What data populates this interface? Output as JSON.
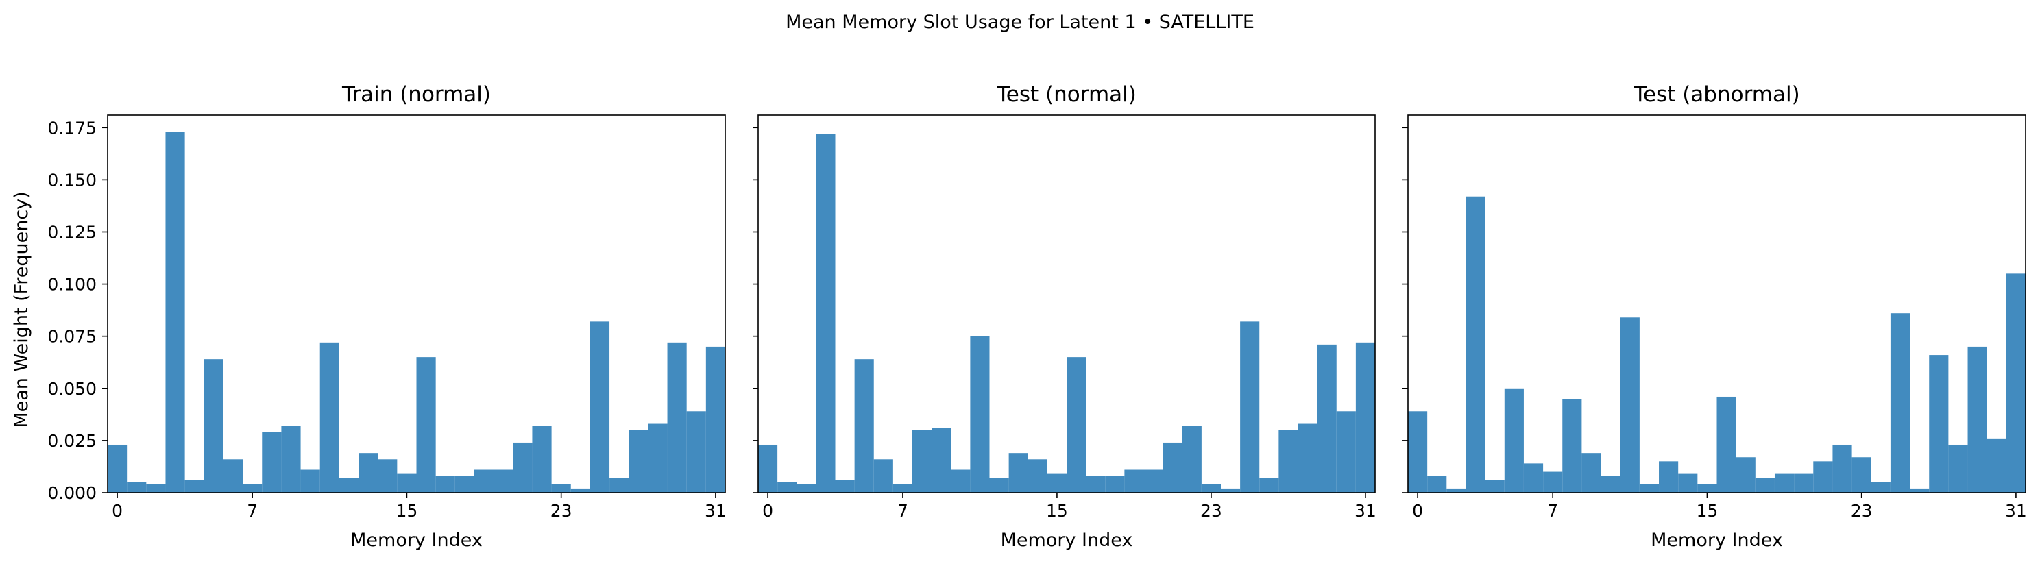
{
  "figure": {
    "suptitle": "Mean Memory Slot Usage for Latent 1 • SATELLITE"
  },
  "chart_data": [
    {
      "type": "bar",
      "title": "Train (normal)",
      "xlabel": "Memory Index",
      "ylabel": "Mean Weight (Frequency)",
      "xticks": [
        0,
        7,
        15,
        23,
        31
      ],
      "yticks": [
        0.0,
        0.025,
        0.05,
        0.075,
        0.1,
        0.125,
        0.15,
        0.175
      ],
      "ylim": [
        0,
        0.181
      ],
      "x": [
        0,
        1,
        2,
        3,
        4,
        5,
        6,
        7,
        8,
        9,
        10,
        11,
        12,
        13,
        14,
        15,
        16,
        17,
        18,
        19,
        20,
        21,
        22,
        23,
        24,
        25,
        26,
        27,
        28,
        29,
        30,
        31
      ],
      "values": [
        0.023,
        0.005,
        0.004,
        0.173,
        0.006,
        0.064,
        0.016,
        0.004,
        0.029,
        0.032,
        0.011,
        0.072,
        0.007,
        0.019,
        0.016,
        0.009,
        0.065,
        0.008,
        0.008,
        0.011,
        0.011,
        0.024,
        0.032,
        0.004,
        0.002,
        0.082,
        0.007,
        0.03,
        0.033,
        0.072,
        0.039,
        0.07
      ],
      "color": "#428bbf"
    },
    {
      "type": "bar",
      "title": "Test (normal)",
      "xlabel": "Memory Index",
      "xticks": [
        0,
        7,
        15,
        23,
        31
      ],
      "yticks": [
        0.0,
        0.025,
        0.05,
        0.075,
        0.1,
        0.125,
        0.15,
        0.175
      ],
      "ylim": [
        0,
        0.181
      ],
      "x": [
        0,
        1,
        2,
        3,
        4,
        5,
        6,
        7,
        8,
        9,
        10,
        11,
        12,
        13,
        14,
        15,
        16,
        17,
        18,
        19,
        20,
        21,
        22,
        23,
        24,
        25,
        26,
        27,
        28,
        29,
        30,
        31
      ],
      "values": [
        0.023,
        0.005,
        0.004,
        0.172,
        0.006,
        0.064,
        0.016,
        0.004,
        0.03,
        0.031,
        0.011,
        0.075,
        0.007,
        0.019,
        0.016,
        0.009,
        0.065,
        0.008,
        0.008,
        0.011,
        0.011,
        0.024,
        0.032,
        0.004,
        0.002,
        0.082,
        0.007,
        0.03,
        0.033,
        0.071,
        0.039,
        0.072
      ],
      "color": "#428bbf"
    },
    {
      "type": "bar",
      "title": "Test (abnormal)",
      "xlabel": "Memory Index",
      "xticks": [
        0,
        7,
        15,
        23,
        31
      ],
      "yticks": [
        0.0,
        0.025,
        0.05,
        0.075,
        0.1,
        0.125,
        0.15,
        0.175
      ],
      "ylim": [
        0,
        0.181
      ],
      "x": [
        0,
        1,
        2,
        3,
        4,
        5,
        6,
        7,
        8,
        9,
        10,
        11,
        12,
        13,
        14,
        15,
        16,
        17,
        18,
        19,
        20,
        21,
        22,
        23,
        24,
        25,
        26,
        27,
        28,
        29,
        30,
        31
      ],
      "values": [
        0.039,
        0.008,
        0.002,
        0.142,
        0.006,
        0.05,
        0.014,
        0.01,
        0.045,
        0.019,
        0.008,
        0.084,
        0.004,
        0.015,
        0.009,
        0.004,
        0.046,
        0.017,
        0.007,
        0.009,
        0.009,
        0.015,
        0.023,
        0.017,
        0.005,
        0.086,
        0.002,
        0.066,
        0.023,
        0.07,
        0.026,
        0.105
      ],
      "color": "#428bbf"
    }
  ]
}
